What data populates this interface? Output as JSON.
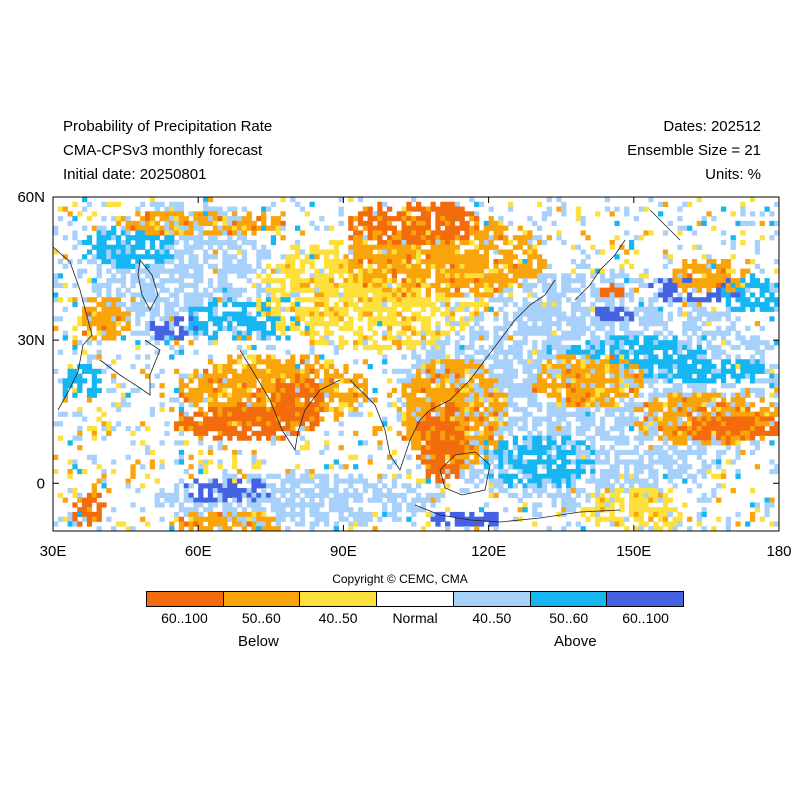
{
  "header": {
    "left": [
      "Probability of Precipitation Rate",
      "CMA-CPSv3 monthly forecast",
      "Initial date: 20250801"
    ],
    "right": [
      "Dates: 202512",
      "Ensemble Size = 21",
      "Units: %"
    ]
  },
  "map": {
    "lon_range": [
      30,
      180
    ],
    "lat_range": [
      -10,
      60
    ],
    "y_ticks": [
      {
        "lat": 60,
        "label": "60N"
      },
      {
        "lat": 30,
        "label": "30N"
      },
      {
        "lat": 0,
        "label": "0"
      }
    ],
    "x_ticks": [
      {
        "lon": 30,
        "label": "30E"
      },
      {
        "lon": 60,
        "label": "60E"
      },
      {
        "lon": 90,
        "label": "90E"
      },
      {
        "lon": 120,
        "label": "120E"
      },
      {
        "lon": 150,
        "label": "150E"
      },
      {
        "lon": 180,
        "label": "180"
      }
    ],
    "colors": [
      "#f26c0d",
      "#f9a40a",
      "#fde03c",
      "#ffffff",
      "#a7d1fb",
      "#16b6f2",
      "#4462e1"
    ],
    "regions": [
      {
        "level": 0,
        "lon": 68,
        "lat": 13,
        "rlon": 14,
        "rlat": 4
      },
      {
        "level": 0,
        "lon": 80,
        "lat": 17,
        "rlon": 6,
        "rlat": 6
      },
      {
        "level": 0,
        "lon": 110,
        "lat": 9,
        "rlon": 5,
        "rlat": 9
      },
      {
        "level": 0,
        "lon": 104,
        "lat": 55,
        "rlon": 14,
        "rlat": 5
      },
      {
        "level": 0,
        "lon": 145,
        "lat": 41,
        "rlon": 3,
        "rlat": 2
      },
      {
        "level": 0,
        "lon": 170,
        "lat": 12,
        "rlon": 12,
        "rlat": 3
      },
      {
        "level": 0,
        "lon": 37,
        "lat": -5,
        "rlon": 4,
        "rlat": 4
      },
      {
        "level": 1,
        "lon": 110,
        "lat": 48,
        "rlon": 22,
        "rlat": 9
      },
      {
        "level": 1,
        "lon": 60,
        "lat": 55,
        "rlon": 18,
        "rlat": 3
      },
      {
        "level": 1,
        "lon": 75,
        "lat": 20,
        "rlon": 20,
        "rlat": 8
      },
      {
        "level": 1,
        "lon": 112,
        "lat": 15,
        "rlon": 12,
        "rlat": 12
      },
      {
        "level": 1,
        "lon": 140,
        "lat": 22,
        "rlon": 12,
        "rlat": 6
      },
      {
        "level": 1,
        "lon": 165,
        "lat": 14,
        "rlon": 16,
        "rlat": 6
      },
      {
        "level": 1,
        "lon": 40,
        "lat": 35,
        "rlon": 6,
        "rlat": 5
      },
      {
        "level": 1,
        "lon": 165,
        "lat": 44,
        "rlon": 8,
        "rlat": 4
      },
      {
        "level": 1,
        "lon": 65,
        "lat": -8,
        "rlon": 12,
        "rlat": 3
      },
      {
        "level": 2,
        "lon": 95,
        "lat": 40,
        "rlon": 25,
        "rlat": 12
      },
      {
        "level": 2,
        "lon": 150,
        "lat": -5,
        "rlon": 12,
        "rlat": 5
      },
      {
        "level": 5,
        "lon": 70,
        "lat": 35,
        "rlon": 14,
        "rlat": 5
      },
      {
        "level": 5,
        "lon": 45,
        "lat": 50,
        "rlon": 10,
        "rlat": 5
      },
      {
        "level": 5,
        "lon": 150,
        "lat": 28,
        "rlon": 15,
        "rlat": 4
      },
      {
        "level": 5,
        "lon": 165,
        "lat": 24,
        "rlon": 14,
        "rlat": 3
      },
      {
        "level": 5,
        "lon": 35,
        "lat": 22,
        "rlon": 5,
        "rlat": 4
      },
      {
        "level": 5,
        "lon": 130,
        "lat": 5,
        "rlon": 12,
        "rlat": 6
      },
      {
        "level": 5,
        "lon": 175,
        "lat": 40,
        "rlon": 8,
        "rlat": 4
      },
      {
        "level": 6,
        "lon": 65,
        "lat": -1,
        "rlon": 10,
        "rlat": 3
      },
      {
        "level": 6,
        "lon": 162,
        "lat": 41,
        "rlon": 10,
        "rlat": 3
      },
      {
        "level": 6,
        "lon": 55,
        "lat": 33,
        "rlon": 6,
        "rlat": 3
      },
      {
        "level": 6,
        "lon": 115,
        "lat": -7,
        "rlon": 8,
        "rlat": 2
      },
      {
        "level": 6,
        "lon": 145,
        "lat": 36,
        "rlon": 5,
        "rlat": 2
      },
      {
        "level": 4,
        "lon": 140,
        "lat": 20,
        "rlon": 40,
        "rlat": 25
      },
      {
        "level": 4,
        "lon": 55,
        "lat": 45,
        "rlon": 20,
        "rlat": 15
      },
      {
        "level": 4,
        "lon": 80,
        "lat": -3,
        "rlon": 30,
        "rlat": 6
      }
    ]
  },
  "copyright": "Copyright © CEMC, CMA",
  "legend": {
    "labels": [
      "60..100",
      "50..60",
      "40..50",
      "Normal",
      "40..50",
      "50..60",
      "60..100"
    ],
    "below": "Below",
    "above": "Above"
  }
}
